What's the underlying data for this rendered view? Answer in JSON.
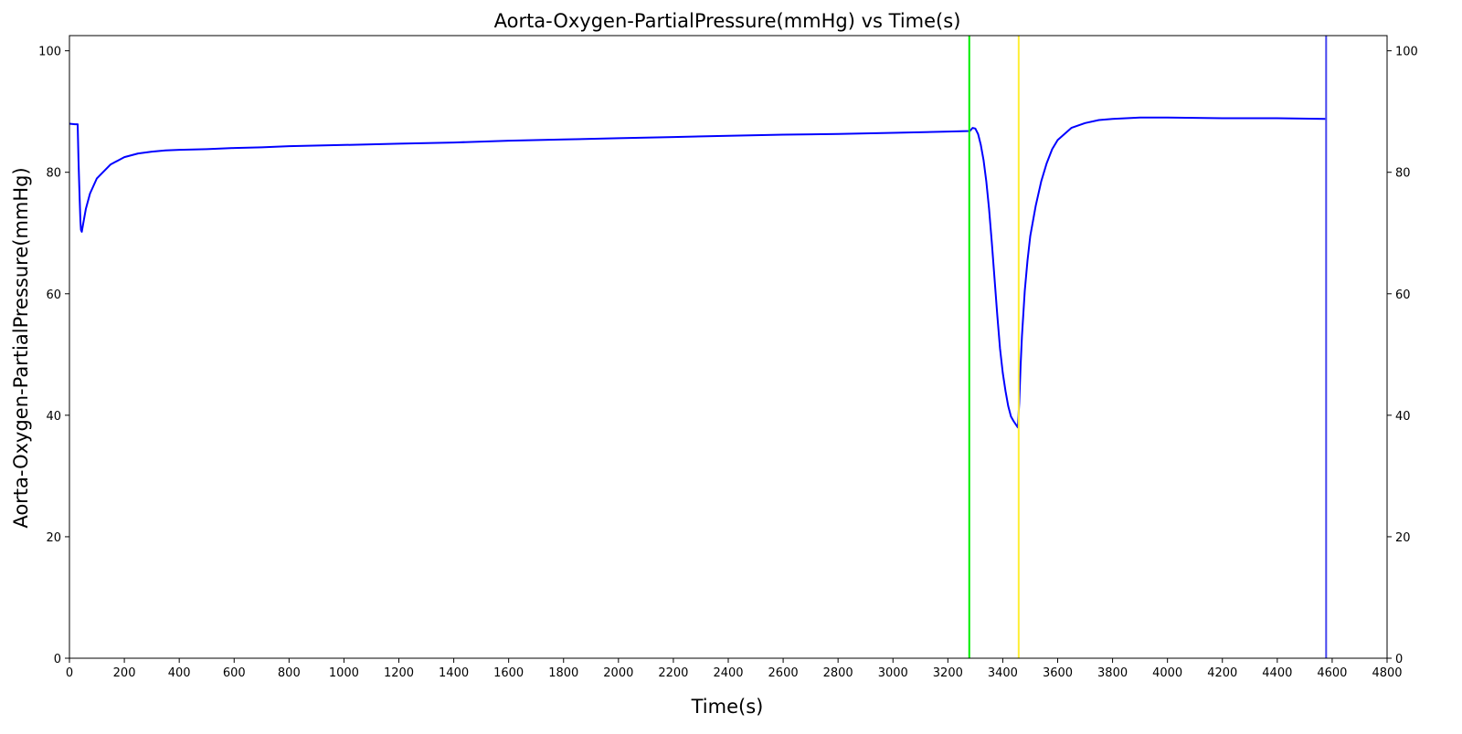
{
  "chart_data": {
    "type": "line",
    "title": "Aorta-Oxygen-PartialPressure(mmHg) vs Time(s)",
    "xlabel": "Time(s)",
    "ylabel": "Aorta-Oxygen-PartialPressure(mmHg)",
    "xlim": [
      0,
      4800
    ],
    "ylim": [
      0,
      102.5
    ],
    "x_ticks": [
      0,
      200,
      400,
      600,
      800,
      1000,
      1200,
      1400,
      1600,
      1800,
      2000,
      2200,
      2400,
      2600,
      2800,
      3000,
      3200,
      3400,
      3600,
      3800,
      4000,
      4200,
      4400,
      4600,
      4800
    ],
    "y_ticks": [
      0,
      20,
      40,
      60,
      80,
      100
    ],
    "right_axis_ticks": true,
    "grid": false,
    "series": [
      {
        "color": "#0000ff",
        "points": [
          [
            0,
            88.0
          ],
          [
            20,
            87.9
          ],
          [
            30,
            87.9
          ],
          [
            33,
            82.0
          ],
          [
            37,
            76.0
          ],
          [
            40,
            72.0
          ],
          [
            42,
            70.5
          ],
          [
            45,
            70.2
          ],
          [
            50,
            71.5
          ],
          [
            60,
            74.0
          ],
          [
            75,
            76.5
          ],
          [
            100,
            79.0
          ],
          [
            150,
            81.3
          ],
          [
            200,
            82.5
          ],
          [
            250,
            83.1
          ],
          [
            300,
            83.4
          ],
          [
            350,
            83.6
          ],
          [
            400,
            83.7
          ],
          [
            500,
            83.8
          ],
          [
            600,
            84.0
          ],
          [
            700,
            84.1
          ],
          [
            800,
            84.3
          ],
          [
            1000,
            84.5
          ],
          [
            1200,
            84.7
          ],
          [
            1400,
            84.9
          ],
          [
            1600,
            85.2
          ],
          [
            1800,
            85.4
          ],
          [
            2000,
            85.6
          ],
          [
            2200,
            85.8
          ],
          [
            2400,
            86.0
          ],
          [
            2600,
            86.2
          ],
          [
            2800,
            86.3
          ],
          [
            3000,
            86.5
          ],
          [
            3200,
            86.7
          ],
          [
            3280,
            86.8
          ],
          [
            3290,
            87.3
          ],
          [
            3300,
            87.2
          ],
          [
            3310,
            86.3
          ],
          [
            3320,
            84.5
          ],
          [
            3330,
            82.0
          ],
          [
            3340,
            78.5
          ],
          [
            3350,
            74.0
          ],
          [
            3360,
            68.5
          ],
          [
            3370,
            62.5
          ],
          [
            3380,
            56.5
          ],
          [
            3390,
            51.0
          ],
          [
            3400,
            47.0
          ],
          [
            3410,
            44.0
          ],
          [
            3420,
            41.5
          ],
          [
            3430,
            39.8
          ],
          [
            3440,
            39.0
          ],
          [
            3455,
            38.0
          ],
          [
            3460,
            42.0
          ],
          [
            3465,
            48.0
          ],
          [
            3470,
            53.0
          ],
          [
            3480,
            60.5
          ],
          [
            3490,
            65.5
          ],
          [
            3500,
            69.5
          ],
          [
            3520,
            74.5
          ],
          [
            3540,
            78.5
          ],
          [
            3560,
            81.5
          ],
          [
            3580,
            83.8
          ],
          [
            3600,
            85.3
          ],
          [
            3650,
            87.3
          ],
          [
            3700,
            88.1
          ],
          [
            3750,
            88.6
          ],
          [
            3800,
            88.8
          ],
          [
            3850,
            88.9
          ],
          [
            3900,
            89.0
          ],
          [
            4000,
            89.0
          ],
          [
            4200,
            88.9
          ],
          [
            4400,
            88.9
          ],
          [
            4575,
            88.8
          ]
        ]
      }
    ],
    "vertical_lines": [
      {
        "x": 3278,
        "color": "#00ee00"
      },
      {
        "x": 3458,
        "color": "#ffee33"
      },
      {
        "x": 4578,
        "color": "#4444ee"
      }
    ]
  }
}
